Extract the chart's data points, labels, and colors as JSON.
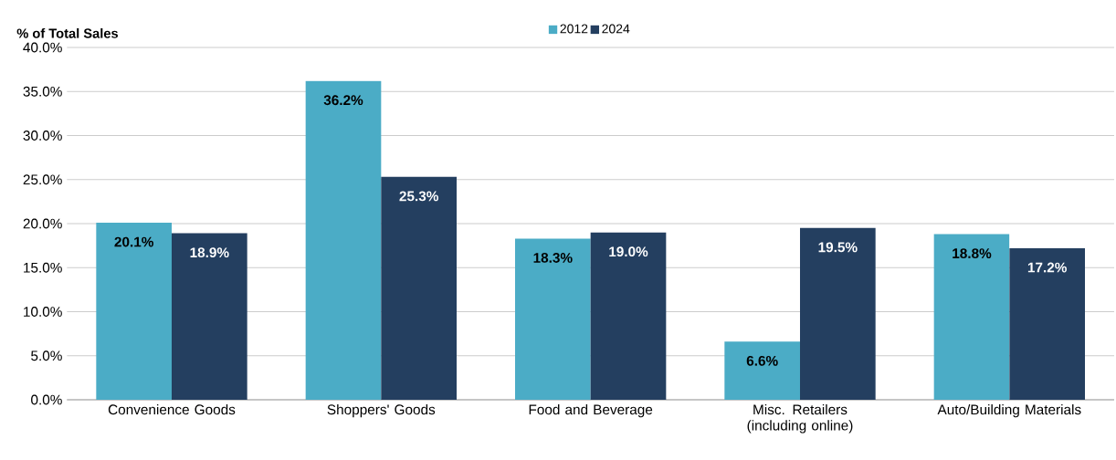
{
  "chart_data": {
    "type": "bar",
    "ylabel": "% of Total Sales",
    "categories": [
      "Convenience Goods",
      "Shoppers' Goods",
      "Food and Beverage",
      "Misc. Retailers (including online)",
      "Auto/Building Materials"
    ],
    "series": [
      {
        "name": "2012",
        "color": "#4bacc6",
        "values": [
          20.1,
          36.2,
          18.3,
          6.6,
          18.8
        ],
        "value_labels": [
          "20.1%",
          "36.2%",
          "18.3%",
          "6.6%",
          "18.8%"
        ]
      },
      {
        "name": "2024",
        "color": "#243f60",
        "values": [
          18.9,
          25.3,
          19.0,
          19.5,
          17.2
        ],
        "value_labels": [
          "18.9%",
          "25.3%",
          "19.0%",
          "19.5%",
          "17.2%"
        ]
      }
    ],
    "ylim": [
      0,
      40
    ],
    "yticks": [
      {
        "value": 0,
        "label": "0.0%"
      },
      {
        "value": 5,
        "label": "5.0%"
      },
      {
        "value": 10,
        "label": "10.0%"
      },
      {
        "value": 15,
        "label": "15.0%"
      },
      {
        "value": 20,
        "label": "20.0%"
      },
      {
        "value": 25,
        "label": "25.0%"
      },
      {
        "value": 30,
        "label": "30.0%"
      },
      {
        "value": 35,
        "label": "35.0%"
      },
      {
        "value": 40,
        "label": "40.0%"
      }
    ],
    "grid": "y",
    "legend": "top"
  }
}
